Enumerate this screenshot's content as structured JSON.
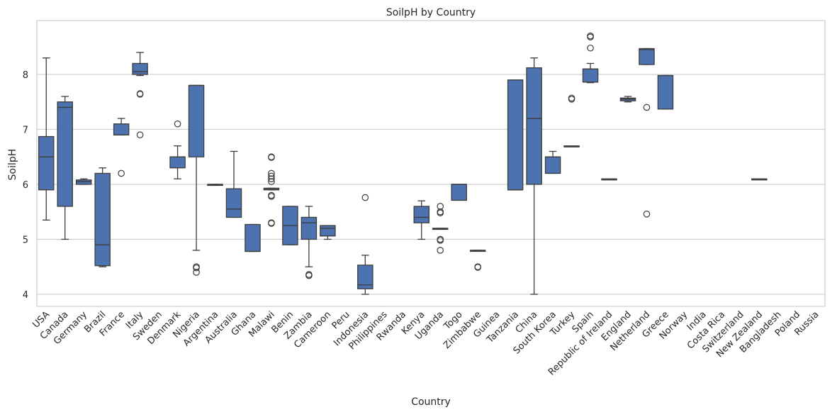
{
  "chart_data": {
    "type": "box",
    "title": "SoilpH by Country",
    "xlabel": "Country",
    "ylabel": "SoilpH",
    "ylim": [
      3.78,
      8.98
    ],
    "yticks": [
      4,
      5,
      6,
      7,
      8
    ],
    "grid": "horizontal",
    "legend": "none",
    "colors": {
      "box": "#4c72b0",
      "line": "#3d3d3d",
      "grid": "#cccccc",
      "frame": "#cccccc"
    },
    "categories": [
      "USA",
      "Canada",
      "Germany",
      "Brazil",
      "France",
      "Italy",
      "Sweden",
      "Denmark",
      "Nigeria",
      "Argentina",
      "Australia",
      "Ghana",
      "Malawi",
      "Benin",
      "Zambia",
      "Cameroon",
      "Peru",
      "Indonesia",
      "Philippines",
      "Rwanda",
      "Kenya",
      "Uganda",
      "Togo",
      "Zimbabwe",
      "Guinea",
      "Tanzania",
      "China",
      "South Korea",
      "Turkey",
      "Spain",
      "Republic of Ireland",
      "England",
      "Netherland",
      "Greece",
      "Norway",
      "India",
      "Costa Rica",
      "Switzerland",
      "New Zealand",
      "Bangladesh",
      "Poland",
      "Russia"
    ],
    "boxes": [
      {
        "name": "USA",
        "whislo": 5.35,
        "q1": 5.9,
        "med": 6.5,
        "q3": 6.87,
        "whishi": 8.3,
        "fliers": []
      },
      {
        "name": "Canada",
        "whislo": 5.0,
        "q1": 5.6,
        "med": 7.4,
        "q3": 7.5,
        "whishi": 7.6,
        "fliers": []
      },
      {
        "name": "Germany",
        "whislo": 6.0,
        "q1": 6.0,
        "med": 6.05,
        "q3": 6.08,
        "whishi": 6.1,
        "fliers": []
      },
      {
        "name": "Brazil",
        "whislo": 4.5,
        "q1": 4.52,
        "med": 4.9,
        "q3": 6.2,
        "whishi": 6.3,
        "fliers": []
      },
      {
        "name": "France",
        "whislo": 6.9,
        "q1": 6.9,
        "med": 6.9,
        "q3": 7.1,
        "whishi": 7.2,
        "fliers": [
          6.2
        ]
      },
      {
        "name": "Italy",
        "whislo": 7.98,
        "q1": 8.0,
        "med": 8.05,
        "q3": 8.2,
        "whishi": 8.4,
        "fliers": [
          7.65,
          7.64,
          6.9
        ]
      },
      {
        "name": "Sweden",
        "whislo": null,
        "q1": null,
        "med": null,
        "q3": null,
        "whishi": null,
        "fliers": []
      },
      {
        "name": "Denmark",
        "whislo": 6.1,
        "q1": 6.3,
        "med": 6.5,
        "q3": 6.5,
        "whishi": 6.7,
        "fliers": [
          7.1
        ]
      },
      {
        "name": "Nigeria",
        "whislo": 4.8,
        "q1": 6.5,
        "med": 7.8,
        "q3": 7.8,
        "whishi": 7.8,
        "fliers": [
          4.5,
          4.48,
          4.4
        ]
      },
      {
        "name": "Argentina",
        "whislo": 6.0,
        "q1": 6.0,
        "med": 6.0,
        "q3": 6.0,
        "whishi": 6.0,
        "fliers": []
      },
      {
        "name": "Australia",
        "whislo": 5.4,
        "q1": 5.4,
        "med": 5.55,
        "q3": 5.92,
        "whishi": 6.6,
        "fliers": []
      },
      {
        "name": "Ghana",
        "whislo": 4.78,
        "q1": 4.78,
        "med": 4.78,
        "q3": 5.27,
        "whishi": 5.27,
        "fliers": []
      },
      {
        "name": "Malawi",
        "whislo": 5.9,
        "q1": 5.9,
        "med": 5.91,
        "q3": 5.93,
        "whishi": 5.93,
        "fliers": [
          6.5,
          6.49,
          6.2,
          6.15,
          6.1,
          6.05,
          5.8,
          5.78,
          5.3,
          5.29
        ]
      },
      {
        "name": "Benin",
        "whislo": 4.9,
        "q1": 4.9,
        "med": 5.25,
        "q3": 5.6,
        "whishi": 5.6,
        "fliers": []
      },
      {
        "name": "Zambia",
        "whislo": 4.5,
        "q1": 5.0,
        "med": 5.3,
        "q3": 5.4,
        "whishi": 5.6,
        "fliers": [
          4.36,
          4.34
        ]
      },
      {
        "name": "Cameroon",
        "whislo": 5.0,
        "q1": 5.06,
        "med": 5.2,
        "q3": 5.25,
        "whishi": 5.25,
        "fliers": []
      },
      {
        "name": "Peru",
        "whislo": null,
        "q1": null,
        "med": null,
        "q3": null,
        "whishi": null,
        "fliers": []
      },
      {
        "name": "Indonesia",
        "whislo": 4.0,
        "q1": 4.1,
        "med": 4.17,
        "q3": 4.53,
        "whishi": 4.71,
        "fliers": [
          5.76
        ]
      },
      {
        "name": "Philippines",
        "whislo": null,
        "q1": null,
        "med": null,
        "q3": null,
        "whishi": null,
        "fliers": []
      },
      {
        "name": "Rwanda",
        "whislo": null,
        "q1": null,
        "med": null,
        "q3": null,
        "whishi": null,
        "fliers": []
      },
      {
        "name": "Kenya",
        "whislo": 5.0,
        "q1": 5.3,
        "med": 5.4,
        "q3": 5.6,
        "whishi": 5.7,
        "fliers": []
      },
      {
        "name": "Uganda",
        "whislo": 5.2,
        "q1": 5.2,
        "med": 5.2,
        "q3": 5.2,
        "whishi": 5.2,
        "fliers": [
          5.6,
          5.5,
          5.48,
          5.0,
          4.98,
          4.8
        ]
      },
      {
        "name": "Togo",
        "whislo": 5.71,
        "q1": 5.71,
        "med": 6.0,
        "q3": 6.0,
        "whishi": 6.0,
        "fliers": []
      },
      {
        "name": "Zimbabwe",
        "whislo": 4.8,
        "q1": 4.8,
        "med": 4.8,
        "q3": 4.8,
        "whishi": 4.8,
        "fliers": [
          4.5,
          4.49
        ]
      },
      {
        "name": "Guinea",
        "whislo": null,
        "q1": null,
        "med": null,
        "q3": null,
        "whishi": null,
        "fliers": []
      },
      {
        "name": "Tanzania",
        "whislo": 5.9,
        "q1": 5.9,
        "med": 5.9,
        "q3": 7.9,
        "whishi": 7.9,
        "fliers": []
      },
      {
        "name": "China",
        "whislo": 4.0,
        "q1": 6.0,
        "med": 7.2,
        "q3": 8.12,
        "whishi": 8.3,
        "fliers": []
      },
      {
        "name": "South Korea",
        "whislo": 6.2,
        "q1": 6.2,
        "med": 6.5,
        "q3": 6.5,
        "whishi": 6.6,
        "fliers": []
      },
      {
        "name": "Turkey",
        "whislo": 6.7,
        "q1": 6.7,
        "med": 6.7,
        "q3": 6.7,
        "whishi": 6.7,
        "fliers": [
          7.57,
          7.55
        ]
      },
      {
        "name": "Spain",
        "whislo": 7.85,
        "q1": 7.86,
        "med": 8.1,
        "q3": 8.1,
        "whishi": 8.2,
        "fliers": [
          8.7,
          8.68,
          8.48
        ]
      },
      {
        "name": "Republic of Ireland",
        "whislo": 6.1,
        "q1": 6.1,
        "med": 6.1,
        "q3": 6.1,
        "whishi": 6.1,
        "fliers": []
      },
      {
        "name": "England",
        "whislo": 7.5,
        "q1": 7.52,
        "med": 7.55,
        "q3": 7.57,
        "whishi": 7.6,
        "fliers": []
      },
      {
        "name": "Netherland",
        "whislo": 8.18,
        "q1": 8.18,
        "med": 8.45,
        "q3": 8.47,
        "whishi": 8.47,
        "fliers": [
          7.4,
          5.46
        ]
      },
      {
        "name": "Greece",
        "whislo": 7.37,
        "q1": 7.37,
        "med": 7.98,
        "q3": 7.98,
        "whishi": 7.98,
        "fliers": []
      },
      {
        "name": "Norway",
        "whislo": null,
        "q1": null,
        "med": null,
        "q3": null,
        "whishi": null,
        "fliers": []
      },
      {
        "name": "India",
        "whislo": null,
        "q1": null,
        "med": null,
        "q3": null,
        "whishi": null,
        "fliers": []
      },
      {
        "name": "Costa Rica",
        "whislo": null,
        "q1": null,
        "med": null,
        "q3": null,
        "whishi": null,
        "fliers": []
      },
      {
        "name": "Switzerland",
        "whislo": null,
        "q1": null,
        "med": null,
        "q3": null,
        "whishi": null,
        "fliers": []
      },
      {
        "name": "New Zealand",
        "whislo": 6.1,
        "q1": 6.1,
        "med": 6.1,
        "q3": 6.1,
        "whishi": 6.1,
        "fliers": []
      },
      {
        "name": "Bangladesh",
        "whislo": null,
        "q1": null,
        "med": null,
        "q3": null,
        "whishi": null,
        "fliers": []
      },
      {
        "name": "Poland",
        "whislo": null,
        "q1": null,
        "med": null,
        "q3": null,
        "whishi": null,
        "fliers": []
      },
      {
        "name": "Russia",
        "whislo": null,
        "q1": null,
        "med": null,
        "q3": null,
        "whishi": null,
        "fliers": []
      }
    ]
  }
}
